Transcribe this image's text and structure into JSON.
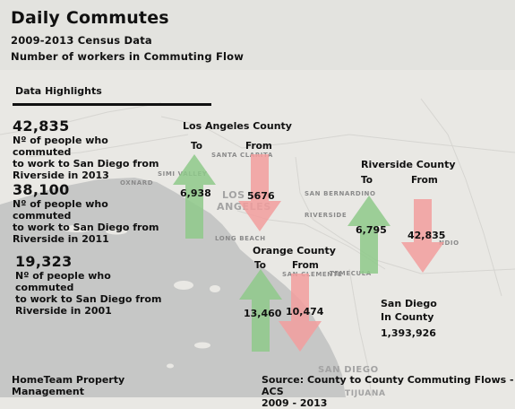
{
  "header": {
    "title": "Daily Commutes",
    "subtitle": "2009-2013 Census Data",
    "subtitle2": "Number of workers in Commuting Flow"
  },
  "highlights": {
    "heading": "Data Highlights",
    "items": [
      {
        "value": "42,835",
        "desc_lines": [
          "Nº of people who commuted",
          "to work to San Diego from",
          "Riverside in 2013"
        ]
      },
      {
        "value": "38,100",
        "desc_lines": [
          "Nº of people who commuted",
          "to work to San Diego from",
          "Riverside in 2011"
        ]
      },
      {
        "value": "19,323",
        "desc_lines": [
          "Nº of people who commuted",
          "to work to San Diego from",
          "Riverside in 2001"
        ]
      }
    ]
  },
  "counties": {
    "los_angeles": {
      "name": "Los Angeles County",
      "to_label": "To",
      "from_label": "From",
      "to_value": "6,938",
      "from_value": "5676"
    },
    "riverside": {
      "name": "Riverside County",
      "to_label": "To",
      "from_label": "From",
      "to_value": "6,795",
      "from_value": "42,835"
    },
    "orange": {
      "name": "Orange County",
      "to_label": "To",
      "from_label": "From",
      "to_value": "13,460",
      "from_value": "10,474"
    },
    "san_diego": {
      "name_lines": [
        "San Diego",
        "In County"
      ],
      "value": "1,393,926"
    }
  },
  "map_labels": {
    "santa_clarita": "SANTA CLARITA",
    "simi_valley": "SIMI VALLEY",
    "oxnard": "OXNARD",
    "los_angeles": [
      "LOS",
      "ANGELES"
    ],
    "long_beach": "LONG BEACH",
    "san_bernardino": "SAN BERNARDINO",
    "riverside": "RIVERSIDE",
    "temecula": "TEMECULA",
    "san_clemente": "SAN CLEMENTE",
    "san_diego": "SAN DIEGO",
    "tijuana": "TIJUANA",
    "ndio": "NDIO"
  },
  "footer": {
    "org_lines": [
      "HomeTeam Property",
      "Management"
    ],
    "source_lines": [
      "Source: County to County Commuting Flows - ACS",
      "2009 - 2013"
    ]
  },
  "colors": {
    "to_arrow": "#8ec98a",
    "from_arrow": "#f29e9e",
    "ocean": "#c6c7c6",
    "land": "#e9e8e4"
  }
}
